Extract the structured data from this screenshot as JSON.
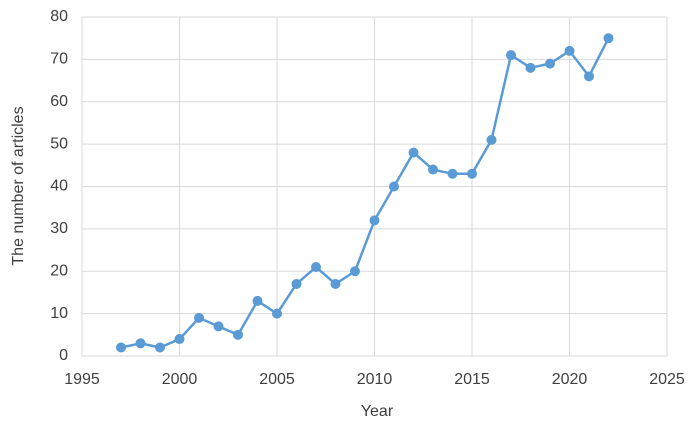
{
  "chart_data": {
    "type": "line",
    "x_label": "Year",
    "y_label": "The number of articles",
    "x": [
      1997,
      1998,
      1999,
      2000,
      2001,
      2002,
      2003,
      2004,
      2005,
      2006,
      2007,
      2008,
      2009,
      2010,
      2011,
      2012,
      2013,
      2014,
      2015,
      2016,
      2017,
      2018,
      2019,
      2020,
      2021,
      2022
    ],
    "series": [
      {
        "name": "Articles",
        "color": "#5b9bd5",
        "values": [
          2,
          3,
          2,
          4,
          9,
          7,
          5,
          13,
          10,
          17,
          21,
          17,
          20,
          32,
          40,
          48,
          44,
          43,
          43,
          51,
          71,
          68,
          69,
          72,
          66,
          75
        ]
      }
    ],
    "xlim": [
      1995,
      2025
    ],
    "xticks": [
      1995,
      2000,
      2005,
      2010,
      2015,
      2020,
      2025
    ],
    "ylim": [
      0,
      80
    ],
    "yticks": [
      0,
      10,
      20,
      30,
      40,
      50,
      60,
      70,
      80
    ],
    "grid": true
  }
}
